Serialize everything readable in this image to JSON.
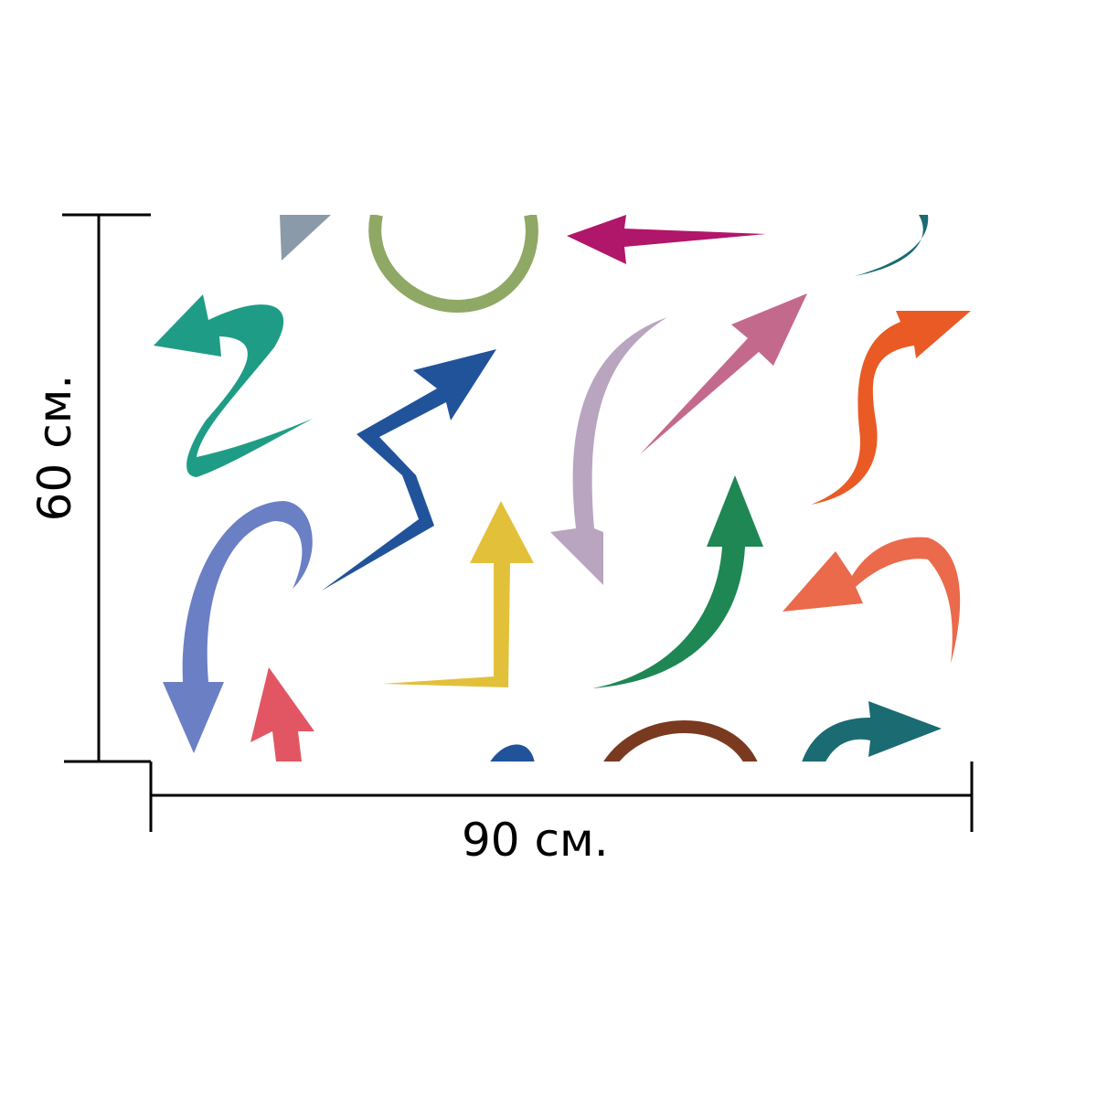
{
  "dimensions": {
    "width_label": "90 см.",
    "height_label": "60 см."
  },
  "pattern": {
    "background": "#ffffff",
    "arrows": [
      {
        "name": "teal-zigzag-arrow",
        "color": "#1f9c86"
      },
      {
        "name": "blue-zigzag-arrow",
        "color": "#21539b"
      },
      {
        "name": "yellow-corner-arrow",
        "color": "#e3c03a"
      },
      {
        "name": "pastel-curved-arrow",
        "color": "#b9a5bf"
      },
      {
        "name": "pink-straight-arrow",
        "color": "#c36a8c"
      },
      {
        "name": "orange-curved-arrow",
        "color": "#ea5a25"
      },
      {
        "name": "purple-curved-arrow",
        "color": "#6a7fc4"
      },
      {
        "name": "green-curved-arrow",
        "color": "#1e8754"
      },
      {
        "name": "coral-curved-arrow",
        "color": "#ea6a4b"
      },
      {
        "name": "red-arrow",
        "color": "#e25664"
      },
      {
        "name": "magenta-arrow",
        "color": "#b0166a"
      },
      {
        "name": "olive-ring",
        "color": "#8fa865"
      },
      {
        "name": "brown-arc",
        "color": "#7a3a20"
      },
      {
        "name": "dark-teal-arrow",
        "color": "#1a6b72"
      }
    ]
  }
}
